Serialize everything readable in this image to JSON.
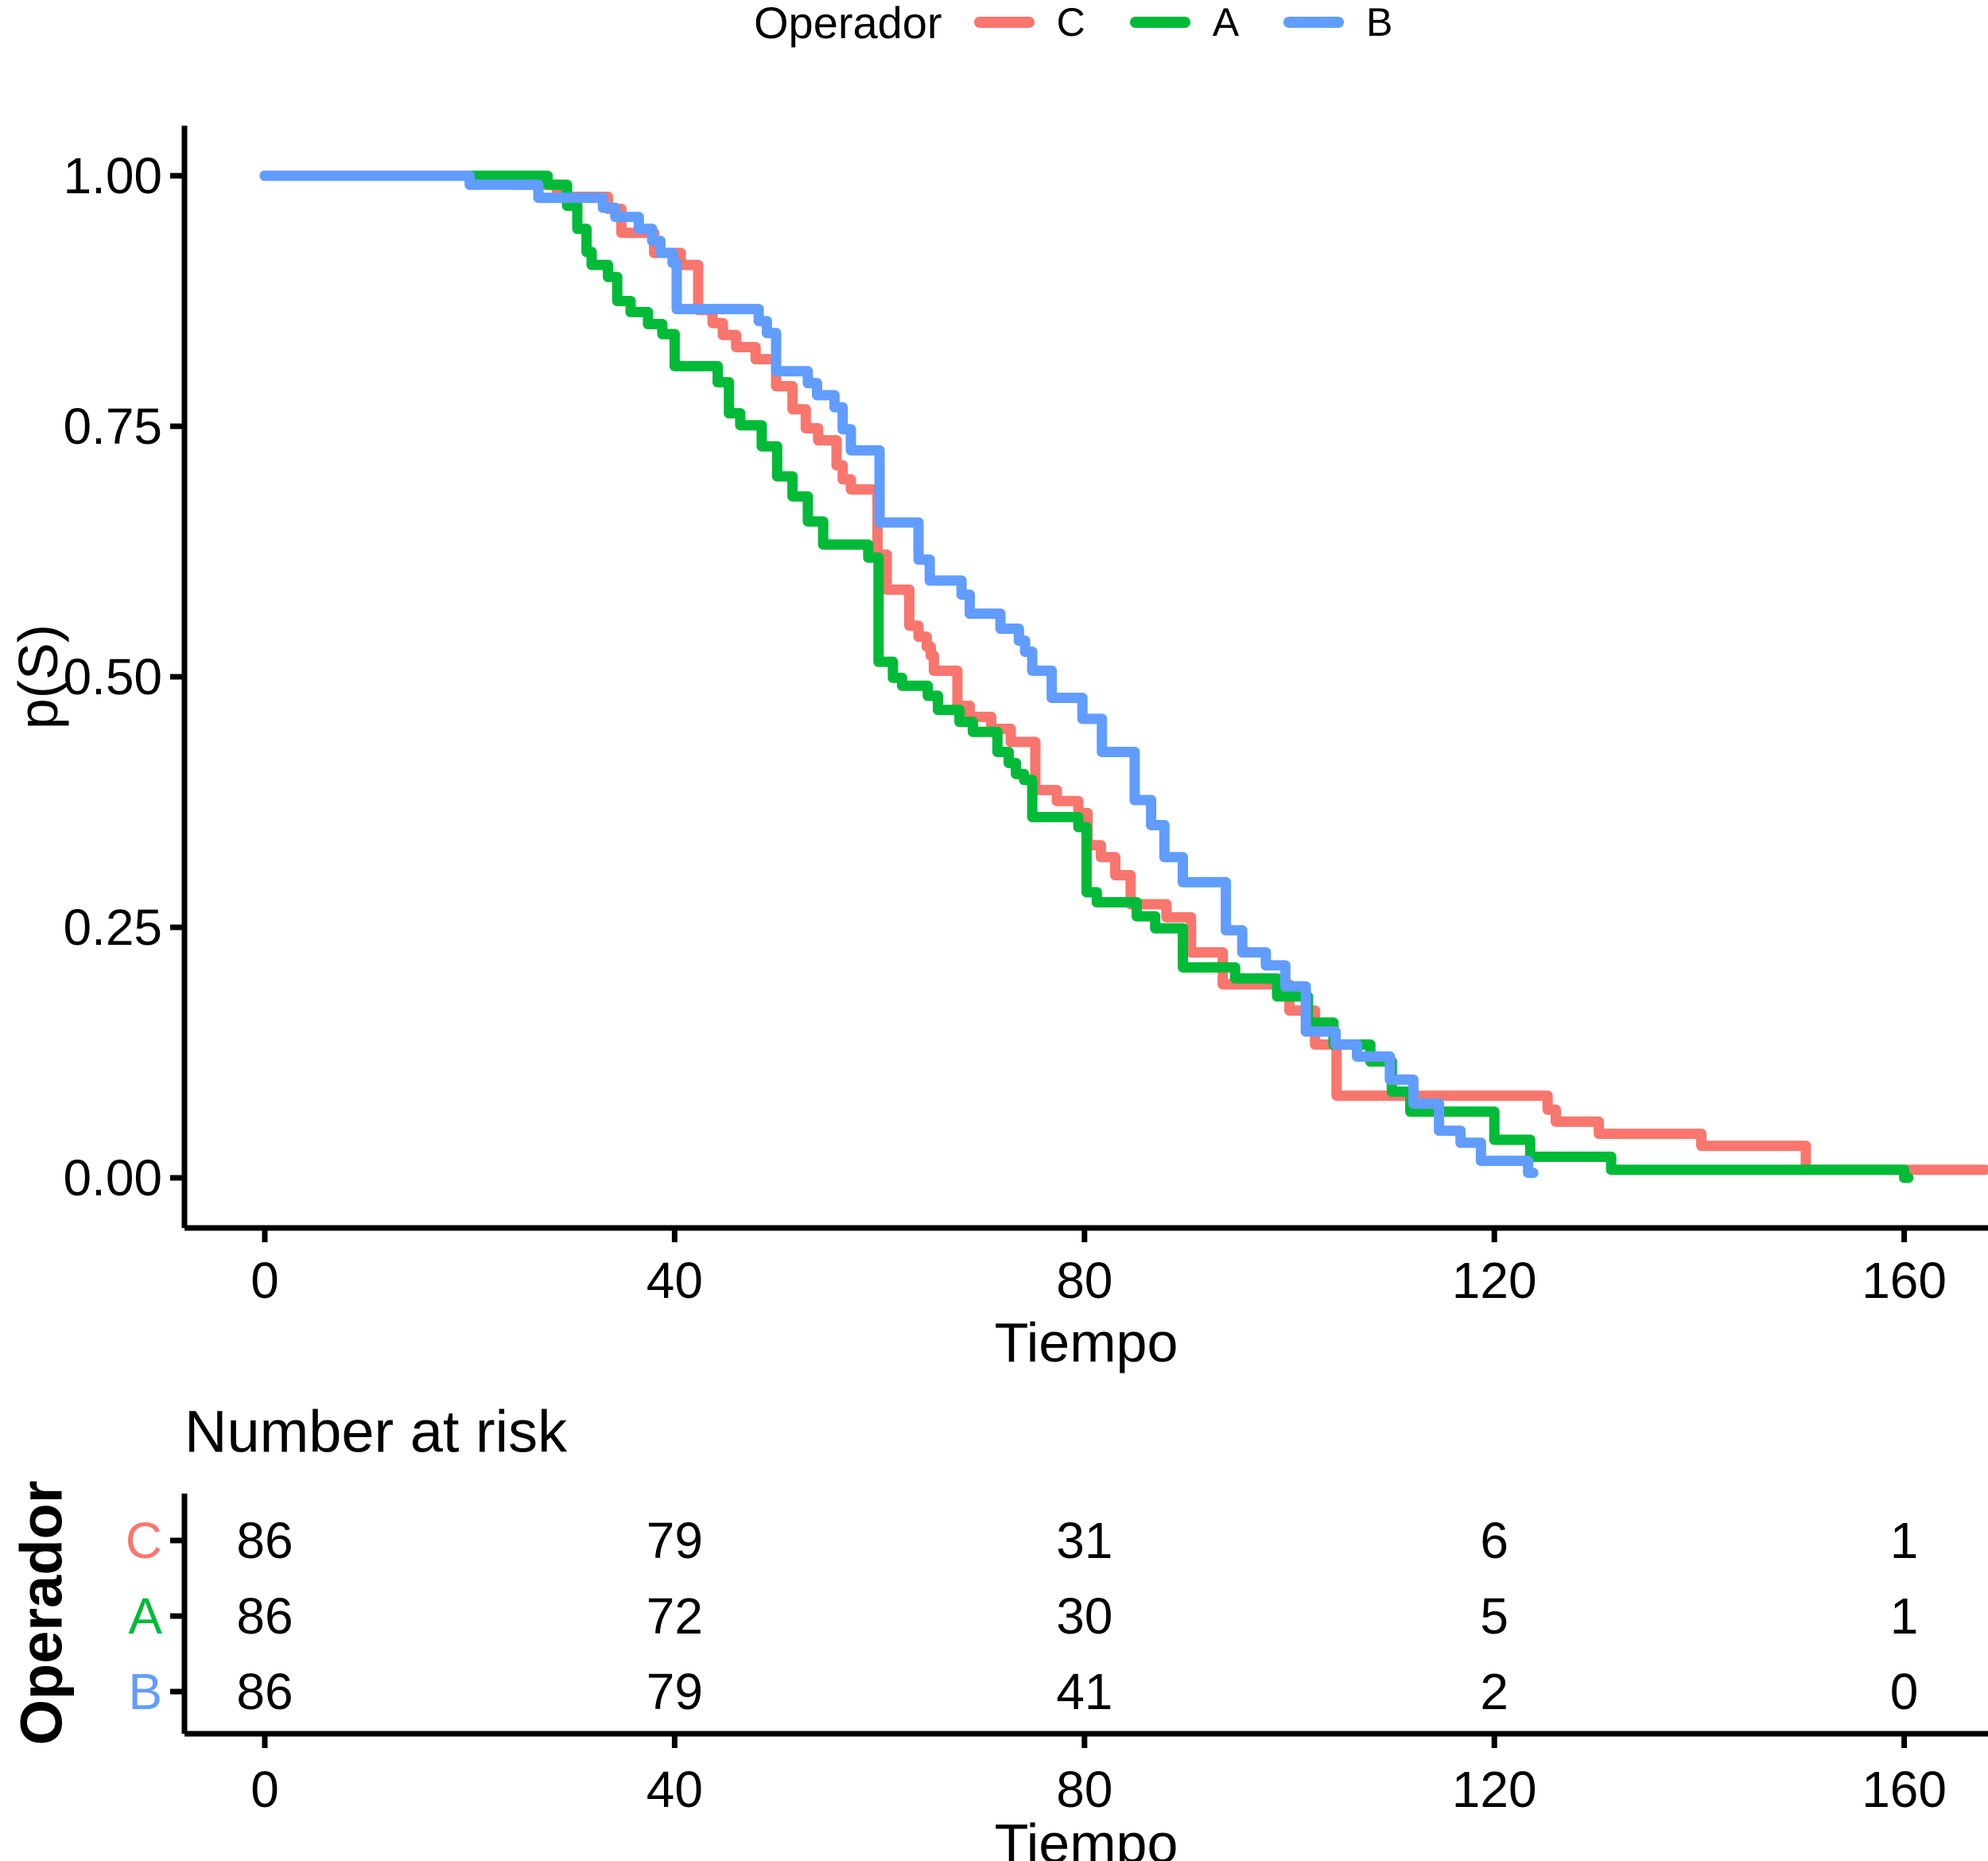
{
  "legend": {
    "title": "Operador",
    "items": [
      {
        "label": "C",
        "color": "#F8766D"
      },
      {
        "label": "A",
        "color": "#00BA38"
      },
      {
        "label": "B",
        "color": "#619CFF"
      }
    ]
  },
  "main_plot": {
    "ylabel": "p(S)",
    "xlabel": "Tiempo",
    "y_tick_labels": [
      "1.00",
      "0.75",
      "0.50",
      "0.25",
      "0.00"
    ],
    "x_tick_labels": [
      "0",
      "40",
      "80",
      "120",
      "160"
    ]
  },
  "risk_table": {
    "title": "Number at risk",
    "ylabel": "Operador",
    "xlabel": "Tiempo",
    "x_tick_labels": [
      "0",
      "40",
      "80",
      "120",
      "160"
    ],
    "rows": [
      {
        "label": "C",
        "color": "#F8766D",
        "counts": [
          "86",
          "79",
          "31",
          "6",
          "1"
        ]
      },
      {
        "label": "A",
        "color": "#00BA38",
        "counts": [
          "86",
          "72",
          "30",
          "5",
          "1"
        ]
      },
      {
        "label": "B",
        "color": "#619CFF",
        "counts": [
          "86",
          "79",
          "41",
          "2",
          "0"
        ]
      }
    ]
  },
  "chart_data": {
    "type": "line",
    "subtype": "kaplan-meier-step-survival",
    "title": "",
    "xlabel": "Tiempo",
    "ylabel": "p(S)",
    "xlim": [
      0,
      160
    ],
    "ylim": [
      0,
      1
    ],
    "x_ticks": [
      {
        "v": 0,
        "label": "0"
      },
      {
        "v": 40,
        "label": "40"
      },
      {
        "v": 80,
        "label": "80"
      },
      {
        "v": 120,
        "label": "120"
      },
      {
        "v": 160,
        "label": "160"
      }
    ],
    "y_ticks": [
      {
        "v": 1.0,
        "label": "1.00"
      },
      {
        "v": 0.75,
        "label": "0.75"
      },
      {
        "v": 0.5,
        "label": "0.50"
      },
      {
        "v": 0.25,
        "label": "0.25"
      },
      {
        "v": 0.0,
        "label": "0.00"
      }
    ],
    "grid": false,
    "legend_title": "Operador",
    "legend_position": "top",
    "series": [
      {
        "name": "C",
        "color": "#F8766D",
        "end_t": 167.9,
        "points": [
          [
            0,
            1.0
          ],
          [
            24.6,
            0.991
          ],
          [
            28.5,
            0.979
          ],
          [
            33.5,
            0.967
          ],
          [
            34.8,
            0.943
          ],
          [
            38.0,
            0.923
          ],
          [
            40.6,
            0.911
          ],
          [
            42.3,
            0.866
          ],
          [
            43.7,
            0.853
          ],
          [
            44.7,
            0.841
          ],
          [
            46.0,
            0.829
          ],
          [
            47.9,
            0.817
          ],
          [
            49.9,
            0.79
          ],
          [
            51.5,
            0.767
          ],
          [
            52.8,
            0.748
          ],
          [
            54.0,
            0.736
          ],
          [
            55.8,
            0.711
          ],
          [
            56.4,
            0.697
          ],
          [
            57.2,
            0.687
          ],
          [
            59.8,
            0.622
          ],
          [
            60.7,
            0.587
          ],
          [
            62.9,
            0.551
          ],
          [
            63.8,
            0.54
          ],
          [
            64.6,
            0.53
          ],
          [
            65.0,
            0.521
          ],
          [
            65.3,
            0.506
          ],
          [
            67.6,
            0.471
          ],
          [
            68.8,
            0.46
          ],
          [
            70.9,
            0.448
          ],
          [
            72.8,
            0.435
          ],
          [
            75.2,
            0.387
          ],
          [
            77.3,
            0.376
          ],
          [
            79.4,
            0.364
          ],
          [
            80.3,
            0.332
          ],
          [
            81.6,
            0.32
          ],
          [
            83.0,
            0.302
          ],
          [
            84.5,
            0.273
          ],
          [
            88.0,
            0.26
          ],
          [
            90.4,
            0.225
          ],
          [
            93.5,
            0.193
          ],
          [
            100.0,
            0.167
          ],
          [
            102.5,
            0.133
          ],
          [
            104.6,
            0.082
          ],
          [
            125.2,
            0.068
          ],
          [
            126.0,
            0.056
          ],
          [
            130.2,
            0.044
          ],
          [
            140.2,
            0.032
          ],
          [
            150.4,
            0.008
          ]
        ]
      },
      {
        "name": "A",
        "color": "#00BA38",
        "end_t": 160.4,
        "points": [
          [
            0,
            1.0
          ],
          [
            27.6,
            0.991
          ],
          [
            29.5,
            0.97
          ],
          [
            30.5,
            0.947
          ],
          [
            31.4,
            0.924
          ],
          [
            31.9,
            0.911
          ],
          [
            33.5,
            0.899
          ],
          [
            34.4,
            0.875
          ],
          [
            35.7,
            0.864
          ],
          [
            37.4,
            0.852
          ],
          [
            38.8,
            0.842
          ],
          [
            40.0,
            0.81
          ],
          [
            44.2,
            0.794
          ],
          [
            45.3,
            0.763
          ],
          [
            46.4,
            0.751
          ],
          [
            48.5,
            0.73
          ],
          [
            50.0,
            0.7
          ],
          [
            51.5,
            0.68
          ],
          [
            53.0,
            0.655
          ],
          [
            54.5,
            0.632
          ],
          [
            58.9,
            0.619
          ],
          [
            59.9,
            0.515
          ],
          [
            61.3,
            0.499
          ],
          [
            62.2,
            0.491
          ],
          [
            64.7,
            0.481
          ],
          [
            65.7,
            0.467
          ],
          [
            67.8,
            0.455
          ],
          [
            69.1,
            0.445
          ],
          [
            71.5,
            0.425
          ],
          [
            72.6,
            0.414
          ],
          [
            73.3,
            0.403
          ],
          [
            74.1,
            0.397
          ],
          [
            74.9,
            0.36
          ],
          [
            79.4,
            0.35
          ],
          [
            80.2,
            0.285
          ],
          [
            81.2,
            0.275
          ],
          [
            85.1,
            0.261
          ],
          [
            86.9,
            0.249
          ],
          [
            89.6,
            0.21
          ],
          [
            94.7,
            0.199
          ],
          [
            98.8,
            0.181
          ],
          [
            101.8,
            0.155
          ],
          [
            104.3,
            0.133
          ],
          [
            107.9,
            0.116
          ],
          [
            110.0,
            0.086
          ],
          [
            111.8,
            0.066
          ],
          [
            120.0,
            0.038
          ],
          [
            123.5,
            0.021
          ],
          [
            131.4,
            0.008
          ],
          [
            160.0,
            0.0
          ]
        ]
      },
      {
        "name": "B",
        "color": "#619CFF",
        "end_t": 123.8,
        "points": [
          [
            0,
            1.0
          ],
          [
            20.0,
            0.991
          ],
          [
            26.7,
            0.978
          ],
          [
            33.0,
            0.968
          ],
          [
            34.2,
            0.959
          ],
          [
            36.5,
            0.947
          ],
          [
            37.8,
            0.935
          ],
          [
            38.6,
            0.923
          ],
          [
            39.8,
            0.913
          ],
          [
            40.2,
            0.867
          ],
          [
            48.2,
            0.855
          ],
          [
            49.0,
            0.843
          ],
          [
            49.9,
            0.805
          ],
          [
            53.0,
            0.793
          ],
          [
            53.9,
            0.781
          ],
          [
            55.6,
            0.769
          ],
          [
            56.4,
            0.747
          ],
          [
            57.2,
            0.726
          ],
          [
            60.0,
            0.654
          ],
          [
            63.8,
            0.617
          ],
          [
            64.9,
            0.596
          ],
          [
            68.0,
            0.582
          ],
          [
            68.8,
            0.563
          ],
          [
            71.8,
            0.548
          ],
          [
            73.6,
            0.536
          ],
          [
            74.2,
            0.525
          ],
          [
            74.9,
            0.506
          ],
          [
            76.8,
            0.479
          ],
          [
            79.8,
            0.458
          ],
          [
            81.7,
            0.425
          ],
          [
            84.9,
            0.377
          ],
          [
            86.5,
            0.352
          ],
          [
            87.8,
            0.32
          ],
          [
            89.6,
            0.295
          ],
          [
            93.8,
            0.247
          ],
          [
            95.4,
            0.225
          ],
          [
            97.7,
            0.212
          ],
          [
            99.6,
            0.191
          ],
          [
            101.6,
            0.146
          ],
          [
            104.5,
            0.133
          ],
          [
            106.6,
            0.121
          ],
          [
            109.8,
            0.098
          ],
          [
            112.1,
            0.074
          ],
          [
            114.6,
            0.047
          ],
          [
            116.7,
            0.035
          ],
          [
            118.7,
            0.017
          ],
          [
            123.3,
            0.005
          ]
        ]
      }
    ],
    "number_at_risk": {
      "times": [
        0,
        40,
        80,
        120,
        160
      ],
      "C": [
        86,
        79,
        31,
        6,
        1
      ],
      "A": [
        86,
        72,
        30,
        5,
        1
      ],
      "B": [
        86,
        79,
        41,
        2,
        0
      ]
    }
  }
}
